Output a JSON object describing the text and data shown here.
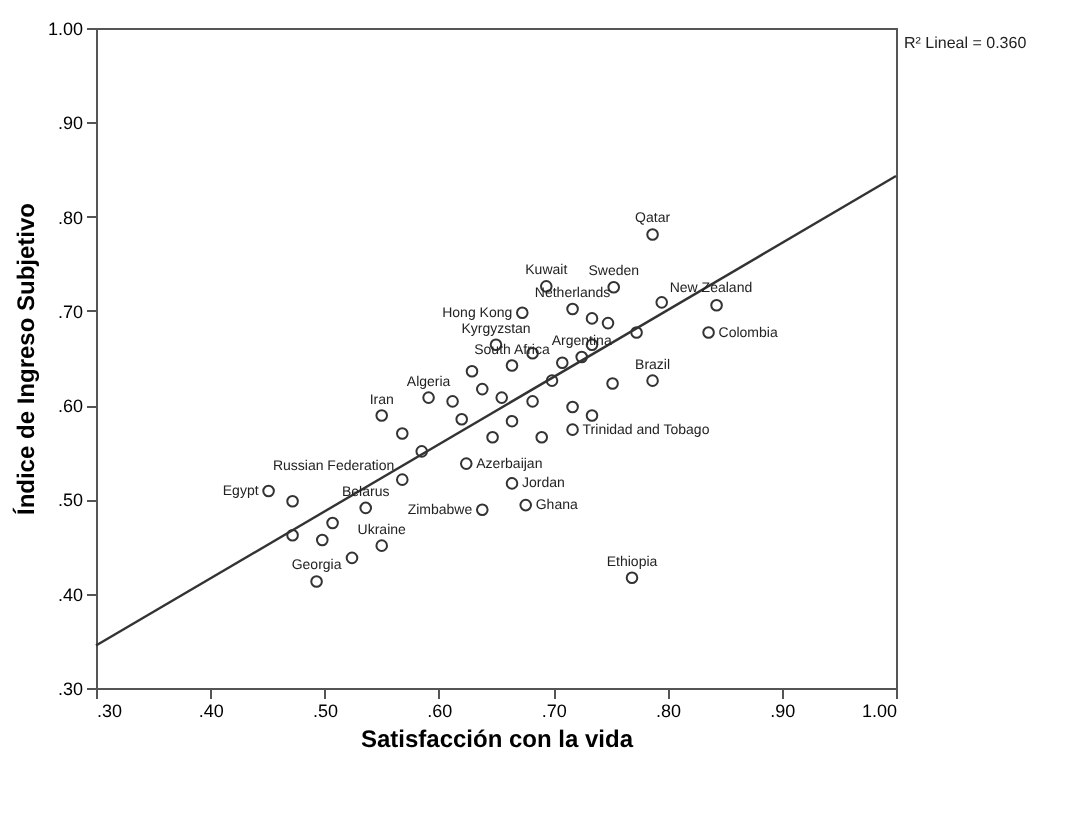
{
  "chart_data": {
    "type": "scatter",
    "xlabel": "Satisfacción con la vida",
    "ylabel": "Índice de Ingreso Subjetivo",
    "xlim": [
      0.3,
      1.0
    ],
    "ylim": [
      0.3,
      1.0
    ],
    "xticks": [
      {
        "value": 0.3,
        "label": ".30"
      },
      {
        "value": 0.4,
        "label": ".40"
      },
      {
        "value": 0.5,
        "label": ".50"
      },
      {
        "value": 0.6,
        "label": ".60"
      },
      {
        "value": 0.7,
        "label": ".70"
      },
      {
        "value": 0.8,
        "label": ".80"
      },
      {
        "value": 0.9,
        "label": ".90"
      },
      {
        "value": 1.0,
        "label": "1.00"
      }
    ],
    "yticks": [
      {
        "value": 0.3,
        "label": ".30"
      },
      {
        "value": 0.4,
        "label": ".40"
      },
      {
        "value": 0.5,
        "label": ".50"
      },
      {
        "value": 0.6,
        "label": ".60"
      },
      {
        "value": 0.7,
        "label": ".70"
      },
      {
        "value": 0.8,
        "label": ".80"
      },
      {
        "value": 0.9,
        "label": ".90"
      },
      {
        "value": 1.0,
        "label": "1.00"
      }
    ],
    "grid": false,
    "marker": "circle",
    "series": [
      {
        "type": "scatter",
        "color": "#333333",
        "x": [
          0.787,
          0.694,
          0.753,
          0.795,
          0.843,
          0.673,
          0.717,
          0.734,
          0.748,
          0.836,
          0.773,
          0.734,
          0.725,
          0.708,
          0.787,
          0.752,
          0.699,
          0.664,
          0.682,
          0.65,
          0.629,
          0.638,
          0.655,
          0.591,
          0.612,
          0.682,
          0.717,
          0.734,
          0.55,
          0.62,
          0.664,
          0.717,
          0.568,
          0.647,
          0.69,
          0.624,
          0.585,
          0.664,
          0.568,
          0.451,
          0.676,
          0.536,
          0.638,
          0.472,
          0.472,
          0.507,
          0.55,
          0.524,
          0.493,
          0.769,
          0.498
        ],
        "values": [
          0.781,
          0.726,
          0.725,
          0.709,
          0.706,
          0.698,
          0.702,
          0.692,
          0.687,
          0.677,
          0.677,
          0.664,
          0.651,
          0.645,
          0.626,
          0.623,
          0.626,
          0.642,
          0.655,
          0.664,
          0.636,
          0.617,
          0.608,
          0.608,
          0.604,
          0.604,
          0.598,
          0.589,
          0.589,
          0.585,
          0.583,
          0.574,
          0.57,
          0.566,
          0.566,
          0.538,
          0.551,
          0.517,
          0.521,
          0.509,
          0.494,
          0.491,
          0.489,
          0.498,
          0.462,
          0.475,
          0.451,
          0.438,
          0.413,
          0.417,
          0.457
        ]
      },
      {
        "type": "line",
        "marker": "none",
        "color": "#333333",
        "x": [
          0.3,
          1.0
        ],
        "values": [
          0.345,
          0.843
        ]
      }
    ],
    "annotations": [
      "R² Lineal = 0.360",
      {
        "text": "Qatar",
        "x": 0.787,
        "y": 0.781
      },
      {
        "text": "Kuwait",
        "x": 0.694,
        "y": 0.726
      },
      {
        "text": "Sweden",
        "x": 0.753,
        "y": 0.725
      },
      {
        "text": "New Zealand",
        "x": 0.795,
        "y": 0.709
      },
      {
        "text": "Hong Kong",
        "x": 0.673,
        "y": 0.698
      },
      {
        "text": "Netherlands",
        "x": 0.717,
        "y": 0.702
      },
      {
        "text": "Colombia",
        "x": 0.836,
        "y": 0.677
      },
      {
        "text": "Argentina",
        "x": 0.725,
        "y": 0.651
      },
      {
        "text": "Brazil",
        "x": 0.787,
        "y": 0.626
      },
      {
        "text": "South Africa",
        "x": 0.664,
        "y": 0.642
      },
      {
        "text": "Kyrgyzstan",
        "x": 0.65,
        "y": 0.664
      },
      {
        "text": "Algeria",
        "x": 0.591,
        "y": 0.608
      },
      {
        "text": "Iran",
        "x": 0.55,
        "y": 0.589
      },
      {
        "text": "Trinidad and Tobago",
        "x": 0.717,
        "y": 0.574
      },
      {
        "text": "Azerbaijan",
        "x": 0.624,
        "y": 0.538
      },
      {
        "text": "Jordan",
        "x": 0.664,
        "y": 0.517
      },
      {
        "text": "Russian Federation",
        "x": 0.568,
        "y": 0.521
      },
      {
        "text": "Egypt",
        "x": 0.451,
        "y": 0.509
      },
      {
        "text": "Ghana",
        "x": 0.676,
        "y": 0.494
      },
      {
        "text": "Belarus",
        "x": 0.536,
        "y": 0.491
      },
      {
        "text": "Zimbabwe",
        "x": 0.638,
        "y": 0.489
      },
      {
        "text": "Ukraine",
        "x": 0.55,
        "y": 0.451
      },
      {
        "text": "Georgia",
        "x": 0.493,
        "y": 0.413
      },
      {
        "text": "Ethiopia",
        "x": 0.769,
        "y": 0.417
      }
    ]
  }
}
